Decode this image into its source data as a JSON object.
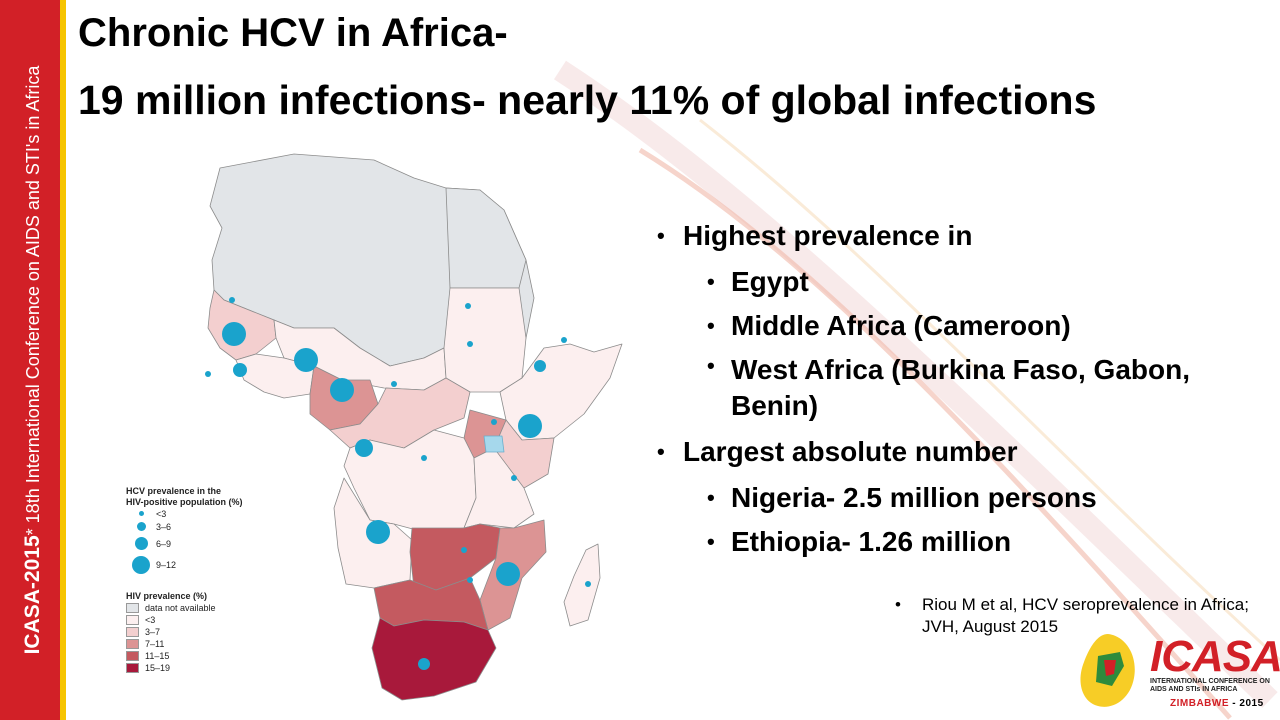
{
  "sidebar": {
    "event": "ICASA-2015",
    "event_mark": "*",
    "text": " 18th International Conference on AIDS and STI's in Africa"
  },
  "title": {
    "line1": "Chronic HCV in Africa-",
    "line2": "19 million infections- nearly 11% of global infections"
  },
  "bullets": {
    "b1": "Highest prevalence in",
    "b1_items": [
      "Egypt",
      "Middle Africa (Cameroon)",
      "West Africa (Burkina Faso, Gabon, Benin)"
    ],
    "b2": "Largest absolute number",
    "b2_items": [
      "Nigeria- 2.5 million persons",
      "Ethiopia- 1.26 million"
    ]
  },
  "citation": "Riou M et al, HCV seroprevalence in Africa; JVH, August 2015",
  "legend": {
    "hcv_title": "HCV prevalence in the HIV-positive population (%)",
    "hcv_title_1": "HCV prevalence in the",
    "hcv_title_2": "HIV-positive population (%)",
    "hcv_items": [
      {
        "label": "<3",
        "size": 1
      },
      {
        "label": "3–6",
        "size": 2
      },
      {
        "label": "6–9",
        "size": 3
      },
      {
        "label": "9–12",
        "size": 4
      }
    ],
    "hiv_title": "HIV prevalence (%)",
    "hiv_items": [
      {
        "label": "data not available",
        "color": "#e2e5e8"
      },
      {
        "label": "<3",
        "color": "#fcefef"
      },
      {
        "label": "3–7",
        "color": "#f3cfcf"
      },
      {
        "label": "7–11",
        "color": "#dc9494"
      },
      {
        "label": "11–15",
        "color": "#c45a60"
      },
      {
        "label": "15–19",
        "color": "#a8193b"
      }
    ]
  },
  "logo": {
    "name": "ICASA",
    "sub": "INTERNATIONAL CONFERENCE ON AIDS AND STIs IN AFRICA",
    "zim": "ZIMBABWE",
    "year": " - 2015"
  },
  "colors": {
    "banner_red": "#d22027",
    "banner_gold": "#f6c400",
    "dot_blue": "#1aa3cc"
  }
}
